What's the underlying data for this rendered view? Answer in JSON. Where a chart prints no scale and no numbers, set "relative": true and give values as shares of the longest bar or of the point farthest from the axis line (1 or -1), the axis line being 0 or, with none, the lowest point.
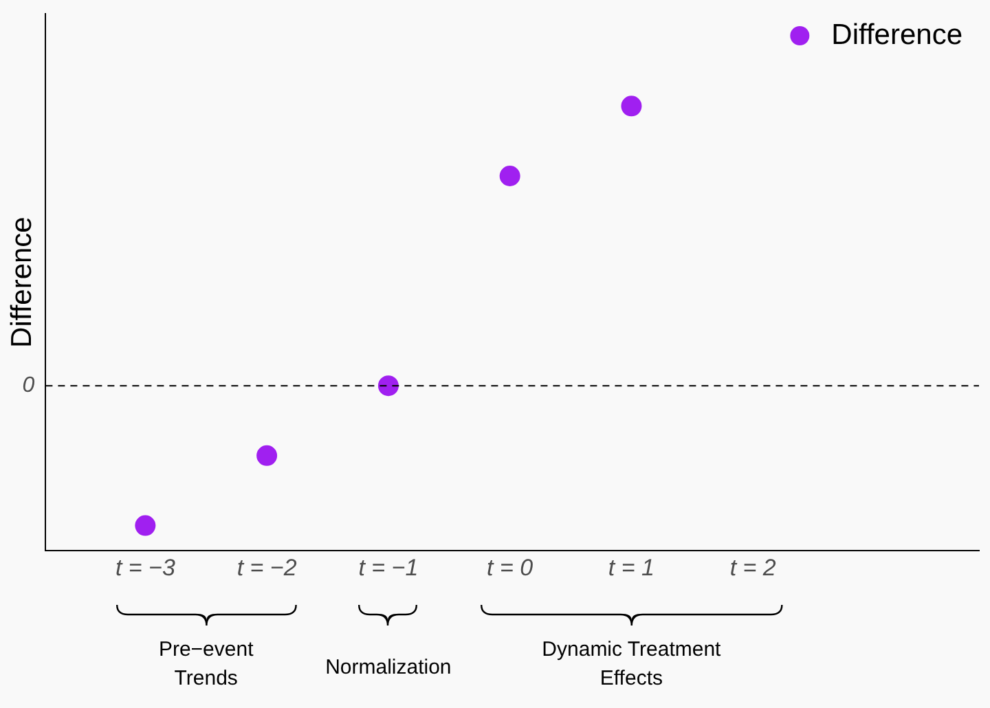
{
  "chart_data": {
    "type": "scatter",
    "ylabel": "Difference",
    "relative": true,
    "marker": "circle",
    "legend": "top right",
    "grid": false,
    "categories": [
      "t = −3",
      "t = −2",
      "t = −1",
      "t = 0",
      "t = 1",
      "t = 2"
    ],
    "series": [
      {
        "name": "Difference",
        "color": "#a020f0",
        "values": [
          -0.5,
          -0.25,
          0,
          0.75,
          1,
          null
        ]
      }
    ],
    "ref_lines": [
      {
        "axis": "y",
        "value": 0,
        "label": "0",
        "line_style": "dashed",
        "color": "#000000"
      }
    ],
    "annotations": [
      "Pre−event Trends",
      "Normalization",
      "Dynamic Treatment Effects"
    ]
  }
}
